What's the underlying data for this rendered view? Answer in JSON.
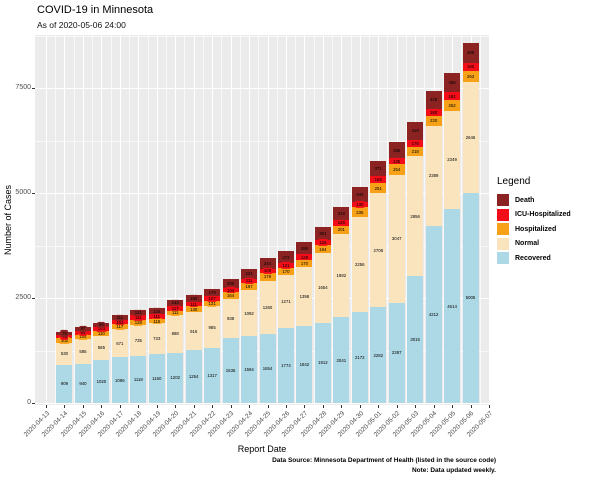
{
  "title": "COVID-19 in Minnesota",
  "subtitle": "As of 2020-05-06 24:00",
  "chart_data": {
    "type": "bar",
    "stacked": true,
    "title": "COVID-19 in Minnesota",
    "subtitle": "As of 2020-05-06 24:00",
    "xlabel": "Report Date",
    "ylabel": "Number of Cases",
    "yticks": [
      0,
      2500,
      5000,
      7500
    ],
    "ylim": [
      0,
      8760
    ],
    "grid": true,
    "legend_title": "Legend",
    "legend_position": "right",
    "legend_order": [
      "Death",
      "ICU-Hospitalized",
      "Hospitalized",
      "Normal",
      "Recovered"
    ],
    "axis_tick_labels": [
      "2020-04-13",
      "2020-04-14",
      "2020-04-15",
      "2020-04-16",
      "2020-04-17",
      "2020-04-18",
      "2020-04-19",
      "2020-04-20",
      "2020-04-21",
      "2020-04-22",
      "2020-04-23",
      "2020-04-24",
      "2020-04-25",
      "2020-04-26",
      "2020-04-27",
      "2020-04-28",
      "2020-04-29",
      "2020-04-30",
      "2020-05-01",
      "2020-05-02",
      "2020-05-03",
      "2020-05-04",
      "2020-05-05",
      "2020-05-06",
      "2020-05-07"
    ],
    "categories": [
      "2020-04-14",
      "2020-04-15",
      "2020-04-16",
      "2020-04-17",
      "2020-04-18",
      "2020-04-19",
      "2020-04-20",
      "2020-04-21",
      "2020-04-22",
      "2020-04-23",
      "2020-04-24",
      "2020-04-25",
      "2020-04-26",
      "2020-04-27",
      "2020-04-28",
      "2020-04-29",
      "2020-04-30",
      "2020-05-01",
      "2020-05-02",
      "2020-05-03",
      "2020-05-04",
      "2020-05-05",
      "2020-05-06"
    ],
    "series": [
      {
        "name": "Recovered",
        "color": "#ADD8E6",
        "values": [
          909,
          940,
          1020,
          1086,
          1118,
          1160,
          1202,
          1254,
          1317,
          1536,
          1594,
          1654,
          1774,
          1842,
          1912,
          2041,
          2172,
          2282,
          2387,
          3015,
          4212,
          4614,
          5005
        ]
      },
      {
        "name": "Normal",
        "color": "#F9E4BE",
        "values": [
          530,
          585,
          585,
          671,
          735,
          733,
          888,
          916,
          985,
          938,
          1092,
          1260,
          1271,
          1398,
          1654,
          1982,
          2256,
          2708,
          3047,
          2856,
          2389,
          2349,
          2646
        ]
      },
      {
        "name": "Hospitalized",
        "color": "#F7A118",
        "values": [
          102,
          104,
          110,
          117,
          128,
          118,
          111,
          130,
          131,
          164,
          167,
          179,
          170,
          170,
          194,
          201,
          235,
          251,
          254,
          218,
          230,
          252,
          263
        ]
      },
      {
        "name": "ICU-Hospitalized",
        "color": "#F20D19",
        "values": [
          75,
          93,
          103,
          101,
          111,
          111,
          117,
          111,
          107,
          104,
          111,
          109,
          121,
          128,
          125,
          128,
          130,
          158,
          135,
          178,
          180,
          182,
          180
        ]
      },
      {
        "name": "Death",
        "color": "#8B2323",
        "values": [
          79,
          87,
          94,
          111,
          121,
          134,
          143,
          160,
          179,
          200,
          221,
          244,
          272,
          286,
          301,
          319,
          343,
          371,
          395,
          419,
          428,
          455,
          485
        ]
      }
    ]
  },
  "footer": {
    "line1": "Data Source: Minnesota Department of Health (listed in the source code)",
    "line2": "Note: Data updated weekly."
  }
}
